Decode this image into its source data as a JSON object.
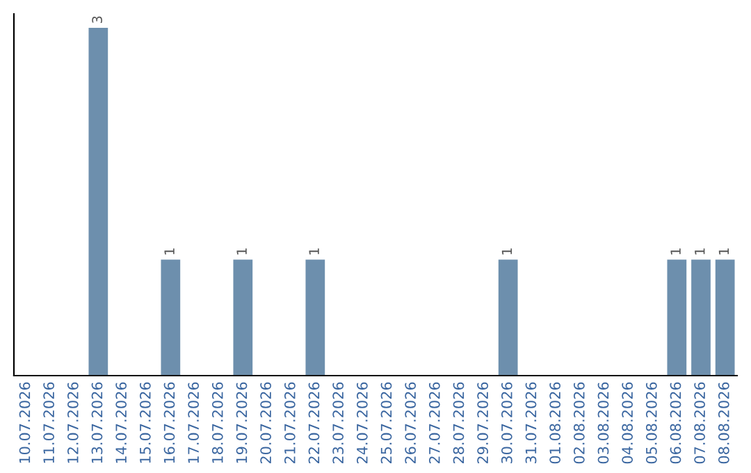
{
  "chart_data": {
    "type": "bar",
    "categories": [
      "10.07.2026",
      "11.07.2026",
      "12.07.2026",
      "13.07.2026",
      "14.07.2026",
      "15.07.2026",
      "16.07.2026",
      "17.07.2026",
      "18.07.2026",
      "19.07.2026",
      "20.07.2026",
      "21.07.2026",
      "22.07.2026",
      "23.07.2026",
      "24.07.2026",
      "25.07.2026",
      "26.07.2026",
      "27.07.2026",
      "28.07.2026",
      "29.07.2026",
      "30.07.2026",
      "31.07.2026",
      "01.08.2026",
      "02.08.2026",
      "03.08.2026",
      "04.08.2026",
      "05.08.2026",
      "06.08.2026",
      "07.08.2026",
      "08.08.2026"
    ],
    "values": [
      0,
      0,
      0,
      3,
      0,
      0,
      1,
      0,
      0,
      1,
      0,
      0,
      1,
      0,
      0,
      0,
      0,
      0,
      0,
      0,
      1,
      0,
      0,
      0,
      0,
      0,
      0,
      1,
      1,
      1
    ],
    "value_labels": [
      null,
      null,
      null,
      "3",
      null,
      null,
      "1",
      null,
      null,
      "1",
      null,
      null,
      "1",
      null,
      null,
      null,
      null,
      null,
      null,
      null,
      "1",
      null,
      null,
      null,
      null,
      null,
      null,
      "1",
      "1",
      "1"
    ],
    "color": "#6d8fad",
    "ylim": [
      0,
      3.12
    ],
    "tick_labels": "x",
    "grid": false,
    "legend": false
  }
}
